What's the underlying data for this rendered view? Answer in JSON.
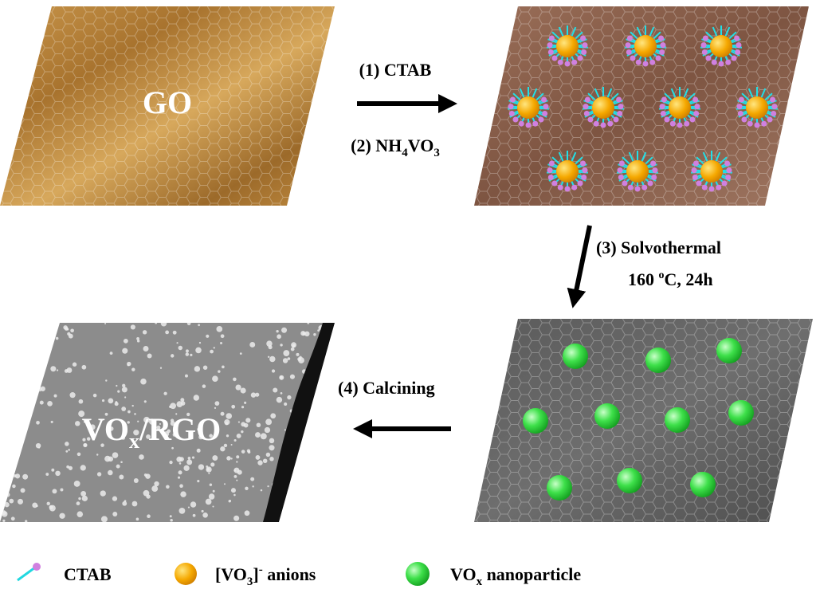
{
  "panels": {
    "go": "GO",
    "product": [
      "VO",
      "x",
      "/RGO"
    ]
  },
  "steps": {
    "step1": "(1) CTAB",
    "step2": [
      "(2) NH",
      "4",
      "VO",
      "3"
    ],
    "step3": {
      "line1": "(3) Solvothermal",
      "line2": [
        "160 ",
        "o",
        "C, 24h"
      ]
    },
    "step4": "(4) Calcining"
  },
  "legend": {
    "ctab": "CTAB",
    "anions": [
      "[VO",
      "3",
      "]",
      "-",
      " anions"
    ],
    "nanoparticle": [
      "VO",
      "x",
      " nanoparticle"
    ]
  }
}
